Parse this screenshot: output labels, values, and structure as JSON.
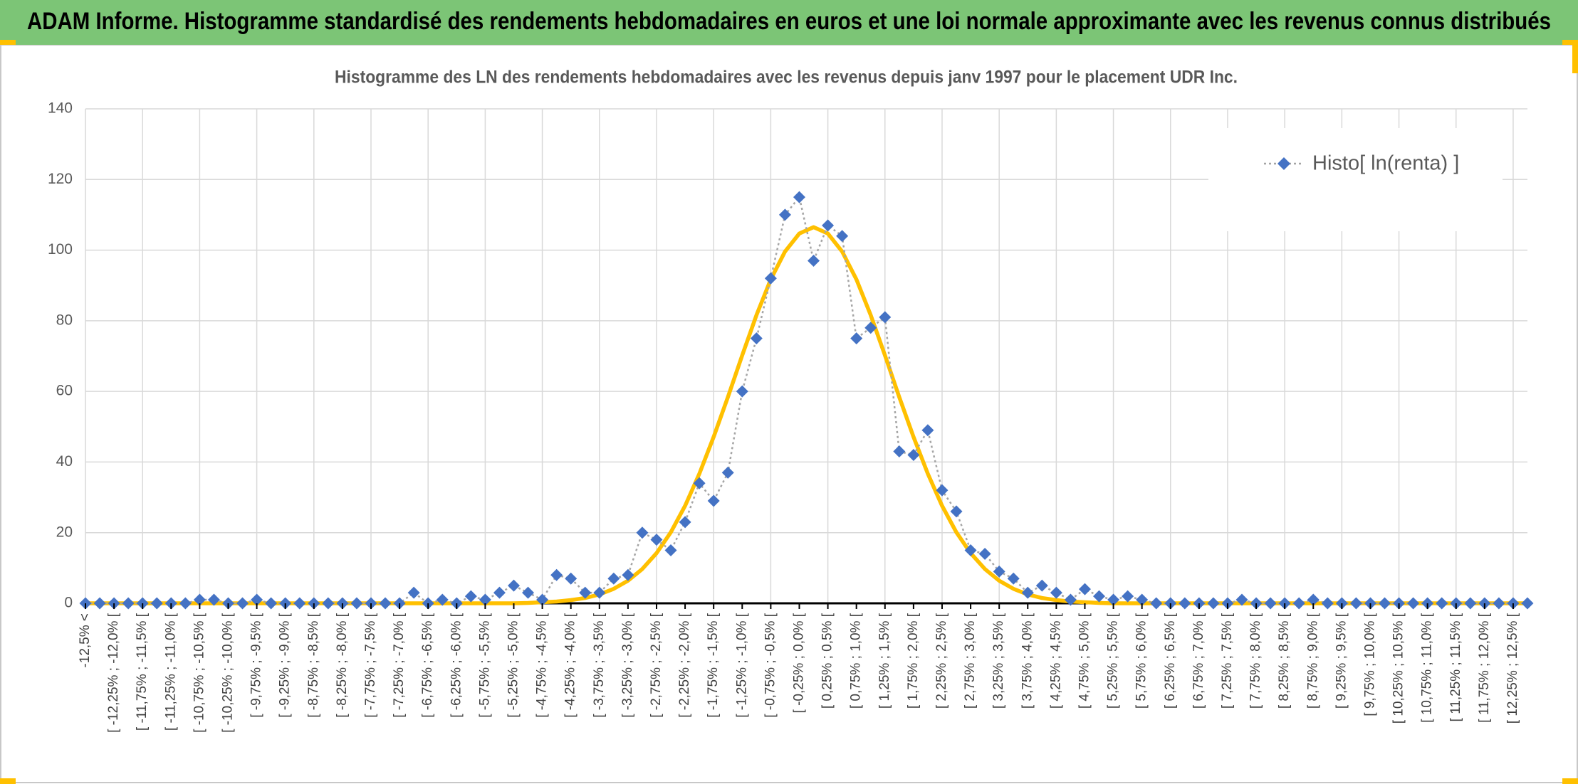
{
  "header": {
    "title": "ADAM Informe. Histogramme standardisé des rendements hebdomadaires en euros et une loi normale approximante avec les revenus connus distribués"
  },
  "chart_data": {
    "type": "line",
    "title": "Histogramme des LN des rendements hebdomadaires avec les revenus depuis janv 1997 pour le placement UDR Inc.",
    "categories": [
      "-12,5% <",
      null,
      "[ -12,25% ; -12,0% [",
      null,
      "[ -11,75% ; -11,5% [",
      null,
      "[ -11,25% ; -11,0% [",
      null,
      "[ -10,75% ; -10,5% [",
      null,
      "[ -10,25% ; -10,0% [",
      null,
      "[ -9,75% ; -9,5% [",
      null,
      "[ -9,25% ; -9,0% [",
      null,
      "[ -8,75% ; -8,5% [",
      null,
      "[ -8,25% ; -8,0% [",
      null,
      "[ -7,75% ; -7,5% [",
      null,
      "[ -7,25% ; -7,0% [",
      null,
      "[ -6,75% ; -6,5% [",
      null,
      "[ -6,25% ; -6,0% [",
      null,
      "[ -5,75% ; -5,5% [",
      null,
      "[ -5,25% ; -5,0% [",
      null,
      "[ -4,75% ; -4,5% [",
      null,
      "[ -4,25% ; -4,0% [",
      null,
      "[ -3,75% ; -3,5% [",
      null,
      "[ -3,25% ; -3,0% [",
      null,
      "[ -2,75% ; -2,5% [",
      null,
      "[ -2,25% ; -2,0% [",
      null,
      "[ -1,75% ; -1,5% [",
      null,
      "[ -1,25% ; -1,0% [",
      null,
      "[ -0,75% ; -0,5% [",
      null,
      "[ -0,25% ; 0,0% [",
      null,
      "[ 0,25% ; 0,5% [",
      null,
      "[ 0,75% ; 1,0% [",
      null,
      "[ 1,25% ; 1,5% [",
      null,
      "[ 1,75% ; 2,0% [",
      null,
      "[ 2,25% ; 2,5% [",
      null,
      "[ 2,75% ; 3,0% [",
      null,
      "[ 3,25% ; 3,5% [",
      null,
      "[ 3,75% ; 4,0% [",
      null,
      "[ 4,25% ; 4,5% [",
      null,
      "[ 4,75% ; 5,0% [",
      null,
      "[ 5,25% ; 5,5% [",
      null,
      "[ 5,75% ; 6,0% [",
      null,
      "[ 6,25% ; 6,5% [",
      null,
      "[ 6,75% ; 7,0% [",
      null,
      "[ 7,25% ; 7,5% [",
      null,
      "[ 7,75% ; 8,0% [",
      null,
      "[ 8,25% ; 8,5% [",
      null,
      "[ 8,75% ; 9,0% [",
      null,
      "[ 9,25% ; 9,5% [",
      null,
      "[ 9,75% ; 10,0% [",
      null,
      "[ 10,25% ; 10,5% [",
      null,
      "[ 10,75% ; 11,0% [",
      null,
      "[ 11,25% ; 11,5% [",
      null,
      "[ 11,75% ; 12,0% [",
      null,
      "[ 12,25% ; 12,5% [",
      null
    ],
    "series": [
      {
        "name": "Histo[ ln(renta) ]",
        "color": "#4472c4",
        "line_color": "#a5a5a5",
        "values": [
          0,
          0,
          0,
          0,
          0,
          0,
          0,
          0,
          1,
          1,
          0,
          0,
          1,
          0,
          0,
          0,
          0,
          0,
          0,
          0,
          0,
          0,
          0,
          3,
          0,
          1,
          0,
          2,
          1,
          3,
          5,
          3,
          1,
          8,
          7,
          3,
          3,
          7,
          8,
          20,
          18,
          15,
          23,
          34,
          29,
          37,
          60,
          75,
          92,
          110,
          115,
          97,
          107,
          104,
          75,
          78,
          81,
          43,
          42,
          49,
          32,
          26,
          15,
          14,
          9,
          7,
          3,
          5,
          3,
          1,
          4,
          2,
          1,
          2,
          1,
          0,
          0,
          0,
          0,
          0,
          0,
          1,
          0,
          0,
          0,
          0,
          1,
          0,
          0,
          0,
          0,
          0,
          0,
          0,
          0,
          0,
          0,
          0,
          0,
          0,
          0,
          0
        ]
      },
      {
        "color": "#ffc000",
        "values": [
          0,
          0,
          0,
          0,
          0,
          0,
          0,
          0,
          0,
          0,
          0,
          0,
          0,
          0,
          0,
          0,
          0,
          0,
          0,
          0,
          0,
          0,
          0,
          0,
          0,
          0,
          0,
          0,
          0,
          0,
          0,
          0.1,
          0.3,
          0.5,
          0.9,
          1.5,
          2.5,
          4.1,
          6.4,
          9.7,
          14.2,
          20.1,
          27.6,
          36.7,
          47.1,
          58.4,
          70.2,
          81.6,
          91.7,
          99.6,
          104.7,
          106.5,
          104.7,
          99.6,
          91.7,
          81.6,
          70.2,
          58.4,
          47.1,
          36.7,
          27.6,
          20.1,
          14.2,
          9.7,
          6.4,
          4.1,
          2.5,
          1.5,
          0.9,
          0.5,
          0.3,
          0.1,
          0,
          0,
          0,
          0,
          0,
          0,
          0,
          0,
          0,
          0,
          0,
          0,
          0,
          0,
          0,
          0,
          0,
          0,
          0,
          0,
          0,
          0,
          0,
          0,
          0,
          0,
          0,
          0,
          0,
          0
        ]
      }
    ],
    "ylim": [
      0,
      140
    ],
    "yticks": [
      0,
      20,
      40,
      60,
      80,
      100,
      120,
      140
    ],
    "grid": true,
    "legend": "top-right"
  }
}
